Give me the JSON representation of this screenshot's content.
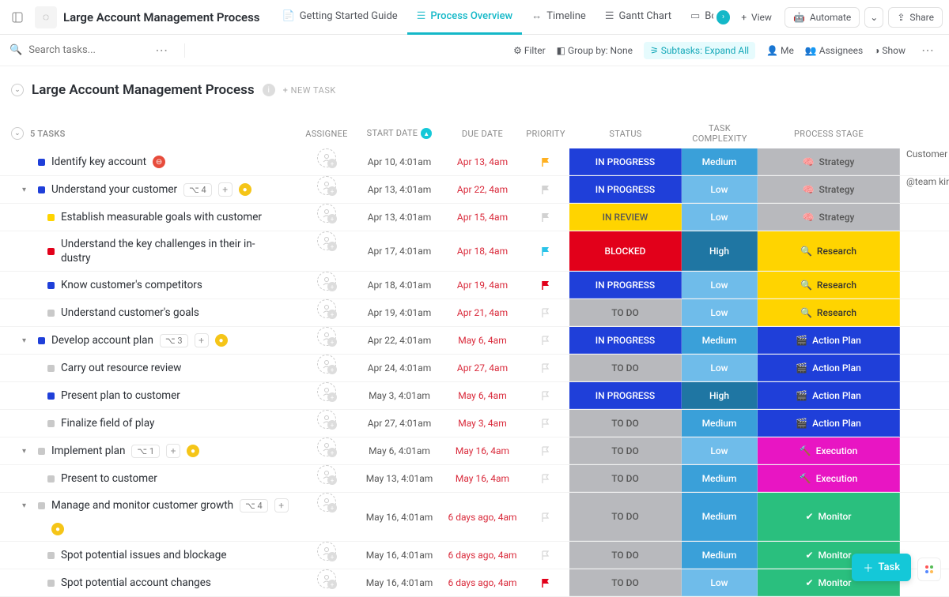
{
  "header": {
    "title": "Large Account Management Process",
    "tabs": [
      {
        "icon": "📄",
        "label": "Getting Started Guide",
        "active": false
      },
      {
        "icon": "☰",
        "label": "Process Overview",
        "active": true
      },
      {
        "icon": "↔",
        "label": "Timeline",
        "active": false
      },
      {
        "icon": "☰",
        "label": "Gantt Chart",
        "active": false
      },
      {
        "icon": "▭",
        "label": "Bo",
        "active": false
      }
    ],
    "view": "View",
    "automate": "Automate",
    "share": "Share"
  },
  "subbar": {
    "search_placeholder": "Search tasks...",
    "filter": "Filter",
    "groupby_label": "Group by:",
    "groupby_value": "None",
    "subtasks": "Subtasks: Expand All",
    "me": "Me",
    "assignees": "Assignees",
    "show": "Show"
  },
  "group": {
    "title": "Large Account Management Process",
    "newtask": "+ NEW TASK",
    "count_label": "5 TASKS"
  },
  "columns": {
    "assignee": "ASSIGNEE",
    "start": "START DATE",
    "due": "DUE DATE",
    "priority": "PRIORITY",
    "status": "STATUS",
    "complexity": "TASK COMPLEXITY",
    "stage": "PROCESS STAGE"
  },
  "colors": {
    "status": {
      "IN PROGRESS": "#1f3fd9",
      "IN REVIEW": "#ffd400",
      "BLOCKED": "#e2001a",
      "TO DO": "#b8b9bd"
    },
    "complexity": {
      "Medium": "#3aa0d9",
      "Low": "#6fbcea",
      "High": "#1f76a3"
    },
    "stage": {
      "Strategy": "#b8b9bd",
      "Research": "#ffd400",
      "Action Plan": "#1f3fd9",
      "Execution": "#e815c3",
      "Monitor": "#2abf7e"
    },
    "stage_icon": {
      "Strategy": "🧠",
      "Research": "🔍",
      "Action Plan": "🎬",
      "Execution": "🔨",
      "Monitor": "✔"
    },
    "square": {
      "blue": "#1f3fd9",
      "yellow": "#ffd400",
      "red": "#e2001a",
      "grey": "#c9c9c9"
    },
    "flag": {
      "orange": "#ffb020",
      "grey": "#d2d2d2",
      "cyan": "#2ac3e8",
      "red": "#e2001a",
      "outline": "#d8d8d8"
    },
    "badge": {
      "red": "#e74c3c",
      "yellow": "#f5c518"
    }
  },
  "rows": [
    {
      "indent": 0,
      "sq": "blue",
      "name": "Identify key account",
      "badge": "red",
      "badge_glyph": "⊖",
      "start": "Apr 10, 4:01am",
      "due": "Apr 13, 4am",
      "flag": "orange",
      "status": "IN PROGRESS",
      "complex": "Medium",
      "stage": "Strategy",
      "extra": "Customer is"
    },
    {
      "indent": 0,
      "caret": true,
      "sq": "blue",
      "name": "Understand your customer",
      "sub": "4",
      "plus": true,
      "badge": "yellow",
      "badge_glyph": "●",
      "start": "Apr 13, 4:01am",
      "due": "Apr 22, 4am",
      "flag": "grey",
      "status": "IN PROGRESS",
      "complex": "Low",
      "stage": "Strategy",
      "extra": "@team kind"
    },
    {
      "indent": 1,
      "sq": "yellow",
      "name": "Establish measurable goals with customer",
      "start": "Apr 13, 4:01am",
      "due": "Apr 15, 4am",
      "flag": "grey",
      "status": "IN REVIEW",
      "status_text": "#555",
      "complex": "Low",
      "stage": "Strategy"
    },
    {
      "indent": 1,
      "sq": "red",
      "name": "Understand the key challenges in their in-\ndustry",
      "twoline": true,
      "start": "Apr 17, 4:01am",
      "due": "Apr 18, 4am",
      "flag": "cyan",
      "status": "BLOCKED",
      "complex": "High",
      "stage": "Research"
    },
    {
      "indent": 1,
      "sq": "blue",
      "name": "Know customer's competitors",
      "start": "Apr 18, 4:01am",
      "due": "Apr 19, 4am",
      "flag": "red",
      "status": "IN PROGRESS",
      "complex": "Low",
      "stage": "Research"
    },
    {
      "indent": 1,
      "sq": "grey",
      "name": "Understand customer's goals",
      "start": "Apr 19, 4:01am",
      "due": "Apr 21, 4am",
      "flag": "outline",
      "status": "TO DO",
      "status_text": "#555",
      "complex": "Low",
      "stage": "Research"
    },
    {
      "indent": 0,
      "caret": true,
      "sq": "blue",
      "name": "Develop account plan",
      "sub": "3",
      "plus": true,
      "badge": "yellow",
      "badge_glyph": "●",
      "start": "Apr 22, 4:01am",
      "due": "May 6, 4am",
      "flag": "outline",
      "status": "IN PROGRESS",
      "complex": "Medium",
      "stage": "Action Plan"
    },
    {
      "indent": 1,
      "sq": "grey",
      "name": "Carry out resource review",
      "start": "Apr 24, 4:01am",
      "due": "Apr 27, 4am",
      "flag": "outline",
      "status": "TO DO",
      "status_text": "#555",
      "complex": "Low",
      "stage": "Action Plan"
    },
    {
      "indent": 1,
      "sq": "blue",
      "name": "Present plan to customer",
      "start": "May 3, 4:01am",
      "due": "May 6, 4am",
      "flag": "outline",
      "status": "IN PROGRESS",
      "complex": "High",
      "stage": "Action Plan"
    },
    {
      "indent": 1,
      "sq": "grey",
      "name": "Finalize field of play",
      "start": "Apr 27, 4:01am",
      "due": "May 3, 4am",
      "flag": "outline",
      "status": "TO DO",
      "status_text": "#555",
      "complex": "Medium",
      "stage": "Action Plan"
    },
    {
      "indent": 0,
      "caret": true,
      "sq": "grey",
      "name": "Implement plan",
      "sub": "1",
      "plus": true,
      "badge": "yellow",
      "badge_glyph": "●",
      "start": "May 6, 4:01am",
      "due": "May 16, 4am",
      "flag": "outline",
      "status": "TO DO",
      "status_text": "#555",
      "complex": "Low",
      "stage": "Execution"
    },
    {
      "indent": 1,
      "sq": "grey",
      "name": "Present to customer",
      "start": "May 13, 4:01am",
      "due": "May 16, 4am",
      "flag": "outline",
      "status": "TO DO",
      "status_text": "#555",
      "complex": "Medium",
      "stage": "Execution"
    },
    {
      "indent": 0,
      "caret": true,
      "sq": "grey",
      "name": "Manage and monitor customer growth",
      "sub": "4",
      "plus": true,
      "badge": "yellow",
      "badge_glyph": "●",
      "badge_below": true,
      "start": "May 16, 4:01am",
      "due": "6 days ago, 4am",
      "flag": "outline",
      "status": "TO DO",
      "status_text": "#555",
      "complex": "Medium",
      "stage": "Monitor"
    },
    {
      "indent": 1,
      "sq": "grey",
      "name": "Spot potential issues and blockage",
      "start": "May 16, 4:01am",
      "due": "6 days ago, 4am",
      "flag": "outline",
      "status": "TO DO",
      "status_text": "#555",
      "complex": "Medium",
      "stage": "Monitor"
    },
    {
      "indent": 1,
      "sq": "grey",
      "name": "Spot potential account changes",
      "start": "May 16, 4:01am",
      "due": "6 days ago, 4am",
      "flag": "red",
      "status": "TO DO",
      "status_text": "#555",
      "complex": "Low",
      "stage": "Monitor"
    }
  ],
  "fab": {
    "task": "Task"
  }
}
